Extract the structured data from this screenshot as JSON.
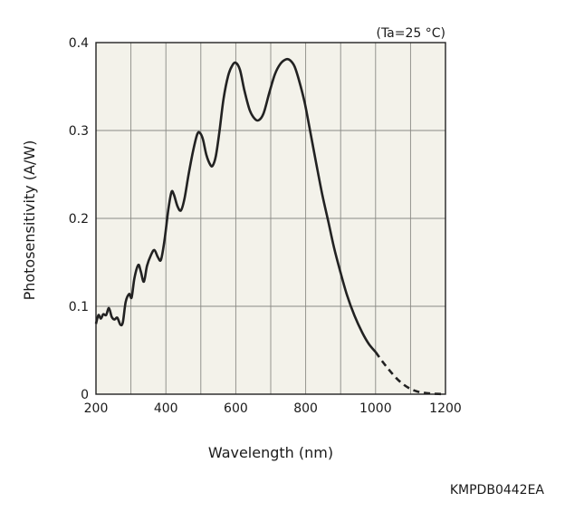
{
  "chart_data": {
    "type": "line",
    "annotation": "(Ta=25 °C)",
    "xlabel": "Wavelength (nm)",
    "ylabel": "Photosensitivity (A/W)",
    "xlim": [
      200,
      1200
    ],
    "ylim": [
      0,
      0.4
    ],
    "xticks": [
      "200",
      "400",
      "600",
      "800",
      "1000",
      "1200"
    ],
    "yticks": [
      "0",
      "0.1",
      "0.2",
      "0.3",
      "0.4"
    ],
    "grid": true,
    "plot_background": "#f3f2ea",
    "line_color": "#222222",
    "series": [
      {
        "style": "solid",
        "points": [
          [
            200,
            0.08
          ],
          [
            207,
            0.09
          ],
          [
            214,
            0.086
          ],
          [
            221,
            0.091
          ],
          [
            229,
            0.09
          ],
          [
            237,
            0.098
          ],
          [
            245,
            0.088
          ],
          [
            253,
            0.085
          ],
          [
            261,
            0.087
          ],
          [
            270,
            0.079
          ],
          [
            277,
            0.082
          ],
          [
            285,
            0.105
          ],
          [
            295,
            0.114
          ],
          [
            302,
            0.11
          ],
          [
            310,
            0.132
          ],
          [
            321,
            0.147
          ],
          [
            328,
            0.14
          ],
          [
            337,
            0.128
          ],
          [
            346,
            0.146
          ],
          [
            357,
            0.158
          ],
          [
            367,
            0.164
          ],
          [
            377,
            0.156
          ],
          [
            386,
            0.153
          ],
          [
            396,
            0.175
          ],
          [
            407,
            0.21
          ],
          [
            416,
            0.23
          ],
          [
            423,
            0.227
          ],
          [
            433,
            0.214
          ],
          [
            443,
            0.209
          ],
          [
            453,
            0.222
          ],
          [
            465,
            0.25
          ],
          [
            478,
            0.277
          ],
          [
            490,
            0.296
          ],
          [
            498,
            0.297
          ],
          [
            506,
            0.29
          ],
          [
            516,
            0.272
          ],
          [
            527,
            0.261
          ],
          [
            534,
            0.26
          ],
          [
            543,
            0.271
          ],
          [
            553,
            0.298
          ],
          [
            565,
            0.336
          ],
          [
            578,
            0.362
          ],
          [
            590,
            0.374
          ],
          [
            600,
            0.377
          ],
          [
            612,
            0.369
          ],
          [
            625,
            0.345
          ],
          [
            640,
            0.323
          ],
          [
            655,
            0.313
          ],
          [
            667,
            0.312
          ],
          [
            680,
            0.32
          ],
          [
            696,
            0.343
          ],
          [
            712,
            0.364
          ],
          [
            728,
            0.376
          ],
          [
            744,
            0.381
          ],
          [
            755,
            0.38
          ],
          [
            768,
            0.373
          ],
          [
            781,
            0.357
          ],
          [
            797,
            0.332
          ],
          [
            812,
            0.301
          ],
          [
            829,
            0.265
          ],
          [
            847,
            0.228
          ],
          [
            865,
            0.196
          ],
          [
            881,
            0.167
          ],
          [
            898,
            0.141
          ],
          [
            918,
            0.113
          ],
          [
            940,
            0.089
          ],
          [
            962,
            0.07
          ],
          [
            981,
            0.057
          ],
          [
            1000,
            0.048
          ]
        ]
      },
      {
        "style": "dashed",
        "points": [
          [
            1000,
            0.048
          ],
          [
            1020,
            0.037
          ],
          [
            1040,
            0.027
          ],
          [
            1060,
            0.018
          ],
          [
            1080,
            0.011
          ],
          [
            1100,
            0.006
          ],
          [
            1120,
            0.003
          ],
          [
            1140,
            0.0015
          ],
          [
            1160,
            0.0007
          ],
          [
            1180,
            0.0003
          ],
          [
            1200,
            0.0001
          ]
        ]
      }
    ]
  },
  "footer_code": "KMPDB0442EA"
}
